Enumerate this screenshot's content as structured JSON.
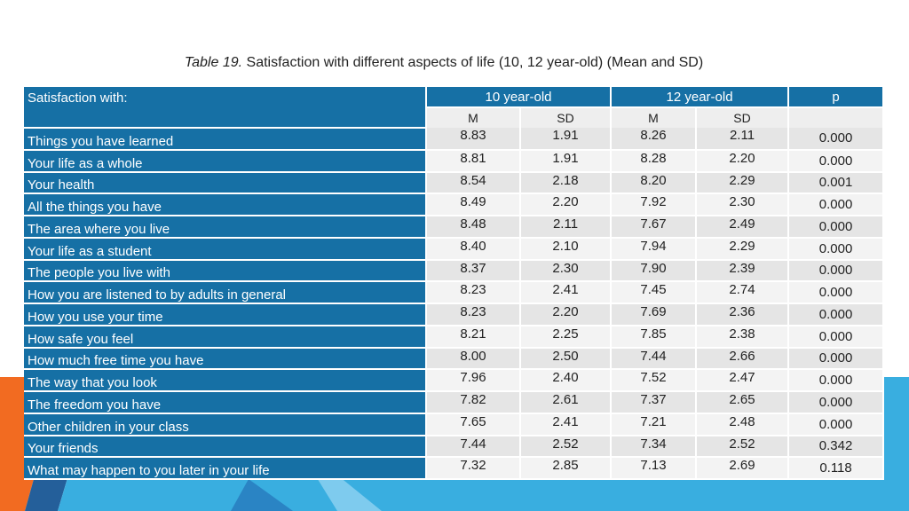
{
  "caption": {
    "label": "Table 19.",
    "text": "Satisfaction with different aspects of life (10, 12 year-old) (Mean and SD)"
  },
  "table": {
    "row_header": "Satisfaction with:",
    "groups": [
      "10 year-old",
      "12 year-old",
      "p"
    ],
    "subheaders": [
      "M",
      "SD",
      "M",
      "SD"
    ],
    "rows": [
      {
        "label": "Things you have learned",
        "m10": "8.83",
        "sd10": "1.91",
        "m12": "8.26",
        "sd12": "2.11",
        "p": "0.000"
      },
      {
        "label": "Your life as a whole",
        "m10": "8.81",
        "sd10": "1.91",
        "m12": "8.28",
        "sd12": "2.20",
        "p": "0.000"
      },
      {
        "label": "Your health",
        "m10": "8.54",
        "sd10": "2.18",
        "m12": "8.20",
        "sd12": "2.29",
        "p": "0.001"
      },
      {
        "label": "All the things you have",
        "m10": "8.49",
        "sd10": "2.20",
        "m12": "7.92",
        "sd12": "2.30",
        "p": "0.000"
      },
      {
        "label": "The area where you live",
        "m10": "8.48",
        "sd10": "2.11",
        "m12": "7.67",
        "sd12": "2.49",
        "p": "0.000"
      },
      {
        "label": "Your life as a student",
        "m10": "8.40",
        "sd10": "2.10",
        "m12": "7.94",
        "sd12": "2.29",
        "p": "0.000"
      },
      {
        "label": "The people you live with",
        "m10": "8.37",
        "sd10": "2.30",
        "m12": "7.90",
        "sd12": "2.39",
        "p": "0.000"
      },
      {
        "label": "How you are listened to by adults in general",
        "m10": "8.23",
        "sd10": "2.41",
        "m12": "7.45",
        "sd12": "2.74",
        "p": "0.000"
      },
      {
        "label": "How you use your time",
        "m10": "8.23",
        "sd10": "2.20",
        "m12": "7.69",
        "sd12": "2.36",
        "p": "0.000"
      },
      {
        "label": "How safe you feel",
        "m10": "8.21",
        "sd10": "2.25",
        "m12": "7.85",
        "sd12": "2.38",
        "p": "0.000"
      },
      {
        "label": "How much free time you have",
        "m10": "8.00",
        "sd10": "2.50",
        "m12": "7.44",
        "sd12": "2.66",
        "p": "0.000"
      },
      {
        "label": "The way that you look",
        "m10": "7.96",
        "sd10": "2.40",
        "m12": "7.52",
        "sd12": "2.47",
        "p": "0.000"
      },
      {
        "label": "The freedom you have",
        "m10": "7.82",
        "sd10": "2.61",
        "m12": "7.37",
        "sd12": "2.65",
        "p": "0.000"
      },
      {
        "label": "Other children in your class",
        "m10": "7.65",
        "sd10": "2.41",
        "m12": "7.21",
        "sd12": "2.48",
        "p": "0.000"
      },
      {
        "label": "Your friends",
        "m10": "7.44",
        "sd10": "2.52",
        "m12": "7.34",
        "sd12": "2.52",
        "p": "0.342"
      },
      {
        "label": "What may happen to you later in your life",
        "m10": "7.32",
        "sd10": "2.85",
        "m12": "7.13",
        "sd12": "2.69",
        "p": "0.118"
      }
    ]
  },
  "colors": {
    "header_blue": "#1670a5",
    "accent_orange": "#f26b21",
    "accent_cyan": "#39aee0",
    "accent_dark": "#245f9a"
  }
}
